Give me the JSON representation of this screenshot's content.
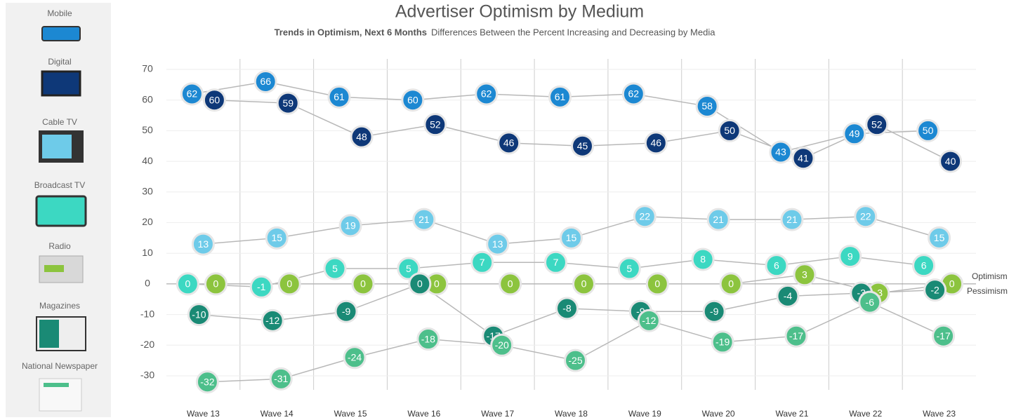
{
  "chart_data": {
    "type": "line",
    "title": "Advertiser Optimism by Medium",
    "subtitle": "Trends in Optimism, Next 6 Months",
    "subtitle_detail": "Differences Between the Percent Increasing and Decreasing by Media",
    "categories": [
      "Wave 13",
      "Wave 14",
      "Wave 15",
      "Wave 16",
      "Wave 17",
      "Wave 18",
      "Wave 19",
      "Wave 20",
      "Wave 21",
      "Wave 22",
      "Wave 23"
    ],
    "ylim": [
      -30,
      70
    ],
    "yticks": [
      70,
      60,
      50,
      40,
      30,
      20,
      10,
      0,
      -10,
      -20,
      -30
    ],
    "grid": true,
    "annotations": [
      "Optimism",
      "Pessimism"
    ],
    "series": [
      {
        "name": "Mobile",
        "color": "#1c88d2",
        "values": [
          62,
          66,
          61,
          60,
          62,
          61,
          62,
          58,
          43,
          49,
          50
        ]
      },
      {
        "name": "Digital",
        "color": "#0e3878",
        "values": [
          60,
          59,
          48,
          52,
          46,
          45,
          46,
          50,
          41,
          52,
          40
        ]
      },
      {
        "name": "Cable TV",
        "color": "#6ecbe9",
        "values": [
          13,
          15,
          19,
          21,
          13,
          15,
          22,
          21,
          21,
          22,
          15
        ]
      },
      {
        "name": "Broadcast TV",
        "color": "#3cd8c2",
        "values": [
          0,
          -1,
          5,
          5,
          7,
          7,
          5,
          8,
          6,
          9,
          6
        ]
      },
      {
        "name": "Radio",
        "color": "#8cc43e",
        "values": [
          0,
          0,
          0,
          0,
          0,
          0,
          0,
          0,
          3,
          -3,
          0
        ]
      },
      {
        "name": "Magazines",
        "color": "#1a8a75",
        "values": [
          -10,
          -12,
          -9,
          0,
          -17,
          -8,
          -9,
          -9,
          -4,
          -3,
          -2
        ]
      },
      {
        "name": "National Newspaper",
        "color": "#4dbf8b",
        "values": [
          -32,
          -31,
          -24,
          -18,
          -20,
          -25,
          -12,
          -19,
          -17,
          -6,
          -17
        ]
      }
    ]
  }
}
